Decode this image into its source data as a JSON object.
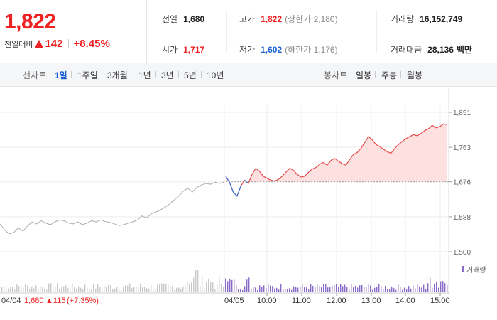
{
  "header": {
    "price": "1,822",
    "change_label": "전일대비",
    "change_abs": "142",
    "change_pct": "+8.45%",
    "colors": {
      "up": "#e22222",
      "down": "#1a5fd6"
    }
  },
  "stats": {
    "prev_close": {
      "label": "전일",
      "value": "1,680"
    },
    "open": {
      "label": "시가",
      "value": "1,717"
    },
    "high": {
      "label": "고가",
      "value": "1,822",
      "sub": "(상한가 2,180)"
    },
    "low": {
      "label": "저가",
      "value": "1,602",
      "sub": "(하한가 1,176)"
    },
    "volume": {
      "label": "거래량",
      "value": "16,152,749"
    },
    "turnover": {
      "label": "거래대금",
      "value": "28,136",
      "unit": "백만"
    }
  },
  "periods": {
    "line_label": "선차트",
    "line_tabs": [
      "1일",
      "1주일",
      "3개월",
      "1년",
      "3년",
      "5년",
      "10년"
    ],
    "active": "1일",
    "candle_label": "봉차트",
    "candle_tabs": [
      "일봉",
      "주봉",
      "월봉"
    ]
  },
  "chart_data": {
    "type": "line",
    "y_ticks": [
      "1,851",
      "1,763",
      "1,676",
      "1,588",
      "1,500"
    ],
    "y_values": [
      1851,
      1763,
      1676,
      1588,
      1500
    ],
    "ylim": [
      1500,
      1851
    ],
    "baseline": 1676,
    "prev_day": {
      "label": "04/04",
      "close": "1,680",
      "change": "▲115",
      "change_pct": "(+7.35%)",
      "values": [
        1570,
        1555,
        1545,
        1548,
        1560,
        1552,
        1565,
        1575,
        1570,
        1578,
        1572,
        1568,
        1575,
        1580,
        1578,
        1572,
        1570,
        1575,
        1568,
        1572,
        1578,
        1575,
        1580,
        1576,
        1574,
        1570,
        1566,
        1568,
        1572,
        1575,
        1580,
        1590,
        1585,
        1595,
        1600,
        1605,
        1612,
        1620,
        1630,
        1640,
        1652,
        1660,
        1650,
        1662,
        1668,
        1672,
        1670,
        1675,
        1672,
        1676
      ]
    },
    "today": {
      "label": "04/05",
      "values": [
        1690,
        1675,
        1650,
        1640,
        1665,
        1680,
        1672,
        1695,
        1710,
        1702,
        1690,
        1685,
        1680,
        1678,
        1682,
        1690,
        1700,
        1710,
        1705,
        1695,
        1688,
        1690,
        1700,
        1708,
        1712,
        1720,
        1725,
        1718,
        1730,
        1735,
        1728,
        1722,
        1718,
        1732,
        1745,
        1750,
        1760,
        1775,
        1790,
        1782,
        1770,
        1765,
        1758,
        1752,
        1748,
        1760,
        1770,
        1778,
        1785,
        1790,
        1795,
        1792,
        1798,
        1805,
        1810,
        1818,
        1812,
        1815,
        1822,
        1820
      ]
    },
    "x_ticks": [
      "10:00",
      "11:00",
      "12:00",
      "13:00",
      "14:00",
      "15:00"
    ],
    "volume_legend": "거래량"
  }
}
